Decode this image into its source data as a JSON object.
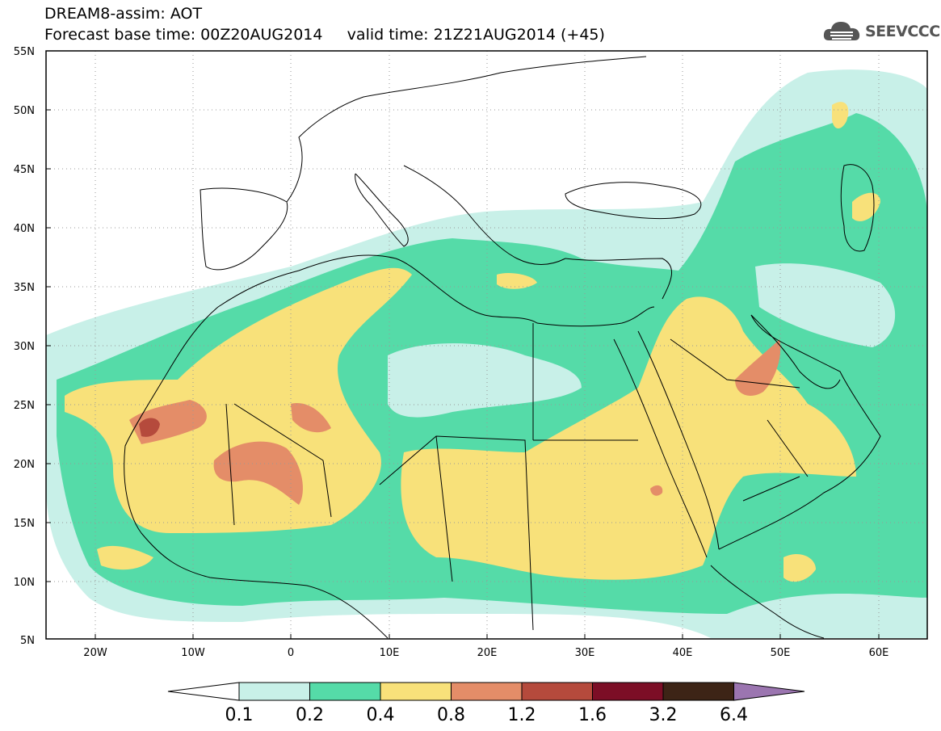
{
  "header": {
    "title_line1": "DREAM8-assim: AOT",
    "title_line2": "Forecast base time: 00Z20AUG2014     valid time: 21Z21AUG2014 (+45)"
  },
  "logo": {
    "text": "SEEVCCC",
    "icon": "cloud-icon",
    "color": "#555555"
  },
  "map": {
    "projection": "lat-lon",
    "lon_range": [
      -25,
      65
    ],
    "lat_range": [
      5,
      55
    ],
    "lat_ticks": [
      "55N",
      "50N",
      "45N",
      "40N",
      "35N",
      "30N",
      "25N",
      "20N",
      "15N",
      "10N",
      "5N"
    ],
    "lon_ticks": [
      "20W",
      "10W",
      "0",
      "10E",
      "20E",
      "30E",
      "40E",
      "50E",
      "60E"
    ],
    "grid": "dotted"
  },
  "colorbar": {
    "levels": [
      "0.1",
      "0.2",
      "0.4",
      "0.8",
      "1.2",
      "1.6",
      "3.2",
      "6.4"
    ],
    "colors": [
      "#c8f0e8",
      "#55dba8",
      "#f8e17a",
      "#e48d68",
      "#b54a3c",
      "#7c0e26",
      "#3d2416",
      "#9b75b0"
    ]
  }
}
